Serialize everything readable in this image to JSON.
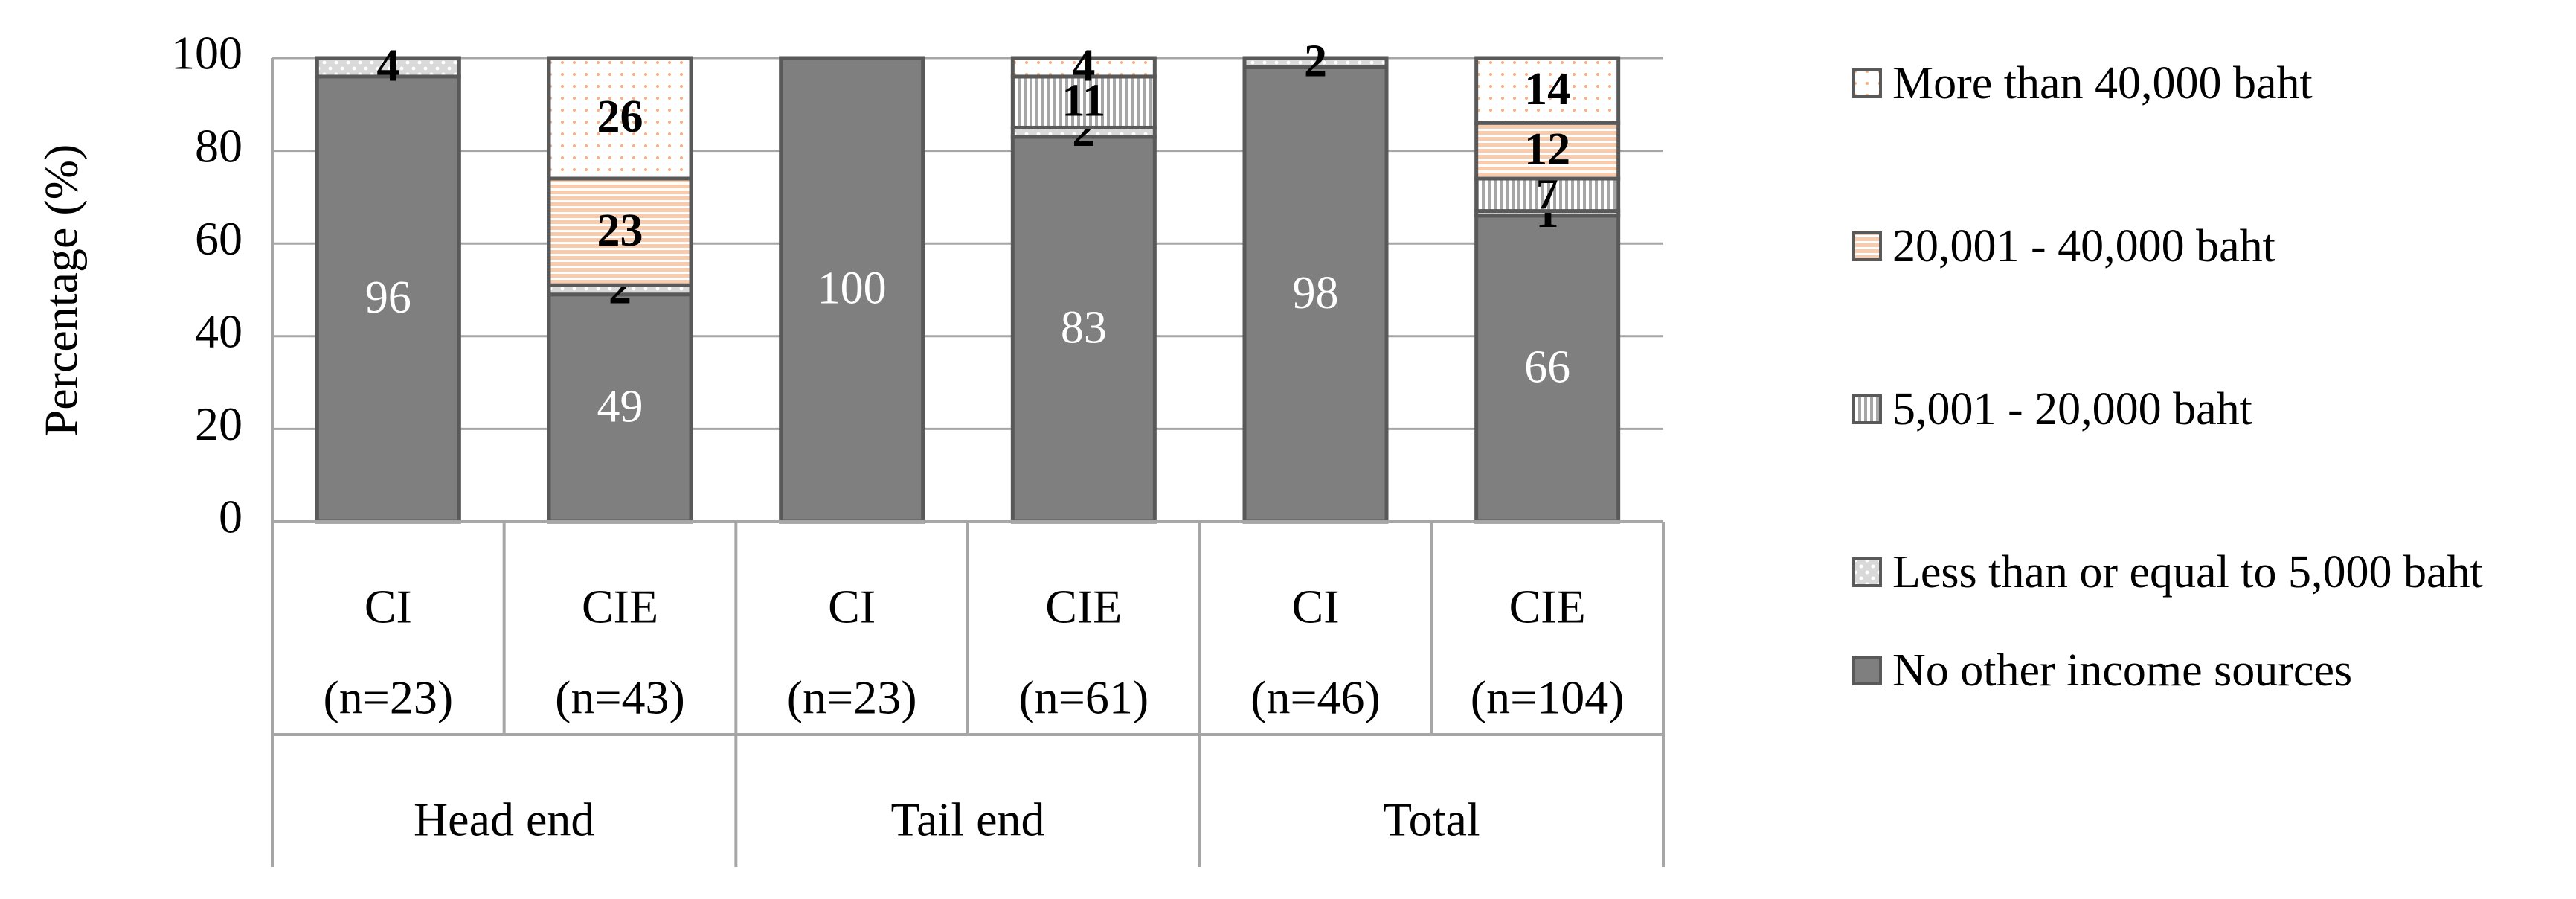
{
  "chart_data": {
    "type": "stacked-bar",
    "y_label": "Percentage (%)",
    "categories": [
      [
        "CI",
        "(n=23)"
      ],
      [
        "CIE",
        "(n=43)"
      ],
      [
        "CI",
        "(n=23)"
      ],
      [
        "CIE",
        "(n=61)"
      ],
      [
        "CI",
        "(n=46)"
      ],
      [
        "CIE",
        "(n=104)"
      ]
    ],
    "groups": [
      "Head end",
      "Tail end",
      "Total"
    ],
    "series": [
      {
        "name": "No other income sources",
        "color": "#7f7f7f",
        "pattern": "solid",
        "values": [
          96,
          49,
          100,
          83,
          98,
          66
        ]
      },
      {
        "name": "Less than or equal to 5,000 baht",
        "color": "#a6a6a6",
        "pattern": "dots",
        "values": [
          4,
          2,
          null,
          2,
          2,
          1
        ]
      },
      {
        "name": "5,001 - 20,000 baht",
        "color": "#a6a6a6",
        "pattern": "vstripes",
        "values": [
          null,
          null,
          null,
          11,
          null,
          7
        ]
      },
      {
        "name": "20,001 - 40,000 baht",
        "color": "#f8cbad",
        "pattern": "hstripes",
        "values": [
          null,
          23,
          null,
          null,
          null,
          12
        ]
      },
      {
        "name": "More than 40,000 baht",
        "color": "#f4b183",
        "pattern": "sparse-dots",
        "values": [
          null,
          26,
          null,
          4,
          null,
          14
        ]
      }
    ],
    "ylim": [
      0,
      100
    ],
    "yticks": [
      0,
      20,
      40,
      60,
      80,
      100
    ],
    "grid": true,
    "legend": "right"
  }
}
